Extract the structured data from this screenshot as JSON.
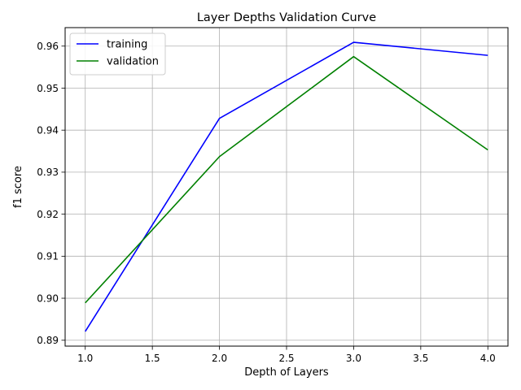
{
  "chart_data": {
    "type": "line",
    "title": "Layer Depths Validation Curve",
    "xlabel": "Depth of Layers",
    "ylabel": "f1 score",
    "x": [
      1.0,
      2.0,
      3.0,
      4.0
    ],
    "series": [
      {
        "name": "training",
        "color": "#0000ff",
        "values": [
          0.8921,
          0.9428,
          0.9609,
          0.9578
        ]
      },
      {
        "name": "validation",
        "color": "#008000",
        "values": [
          0.8989,
          0.9337,
          0.9575,
          0.9353
        ]
      }
    ],
    "xlim": [
      0.85,
      4.15
    ],
    "ylim": [
      0.8886,
      0.9644
    ],
    "xticks": [
      1.0,
      1.5,
      2.0,
      2.5,
      3.0,
      3.5,
      4.0
    ],
    "xtick_labels": [
      "1.0",
      "1.5",
      "2.0",
      "2.5",
      "3.0",
      "3.5",
      "4.0"
    ],
    "yticks": [
      0.89,
      0.9,
      0.91,
      0.92,
      0.93,
      0.94,
      0.95,
      0.96
    ],
    "ytick_labels": [
      "0.89",
      "0.90",
      "0.91",
      "0.92",
      "0.93",
      "0.94",
      "0.95",
      "0.96"
    ],
    "grid": true,
    "legend_position": "upper-left"
  }
}
